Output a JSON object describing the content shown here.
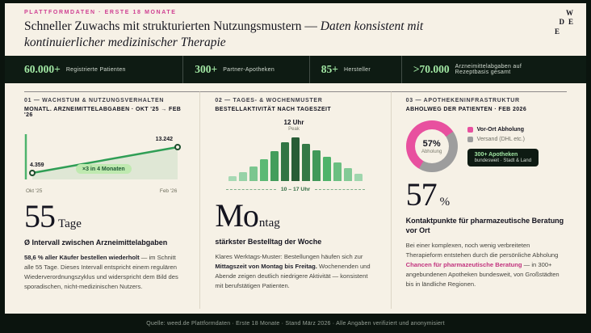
{
  "header": {
    "eyebrow": "PLATTFORMDATEN · ERSTE 18 MONATE",
    "title_regular": "Schneller Zuwachs mit strukturierten Nutzungsmustern —",
    "title_italic": "Daten konsistent mit kontinuierlicher medizinischer Therapie",
    "logo_line1": "W",
    "logo_line2a": "D",
    "logo_line2b": "E",
    "logo_line3": "E"
  },
  "stats": [
    {
      "value": "60.000+",
      "label": "Registrierte Patienten"
    },
    {
      "value": "300+",
      "label": "Partner-Apotheken"
    },
    {
      "value": "85+",
      "label": "Hersteller"
    },
    {
      "value": ">70.000",
      "label": "Arzneimittelabgaben auf Rezeptbasis gesamt"
    }
  ],
  "col1": {
    "header": "01 — WACHSTUM & NUTZUNGSVERHALTEN",
    "subheader": "MONATL. ARZNEIMITTELABGABEN · OKT '25 → FEB '26",
    "chart": {
      "start_value": "4.359",
      "end_value": "13.242",
      "badge": "×3 in 4 Monaten",
      "x_start": "Okt '25",
      "x_end": "Feb '26"
    },
    "big_number": "55",
    "big_unit": "Tage",
    "caption": "Ø Intervall zwischen Arzneimittelabgaben",
    "para_bold": "58,6 % aller Käufer bestellen wiederholt",
    "para_rest": " — im Schnitt alle 55 Tage. Dieses Intervall entspricht einem regulären Wiederverordnungszyklus und widerspricht dem Bild des sporadischen, nicht-medizinischen Nutzers."
  },
  "col2": {
    "header": "02 — TAGES- & WOCHENMUSTER",
    "subheader": "BESTELLAKTIVITÄT NACH TAGESZEIT",
    "peak_label": "12 Uhr",
    "peak_sub": "Peak",
    "range_label": "10 – 17 Uhr",
    "big_number": "Mo",
    "big_unit": "ntag",
    "caption": "stärkster Bestelltag der Woche",
    "para_lead": "Klares Werktags-Muster: Bestellungen häufen sich zur ",
    "para_bold": "Mittagszeit von Montag bis Freitag.",
    "para_rest": " Wochenenden und Abende zeigen deutlich niedrigere Aktivität — konsistent mit berufstätigen Patienten."
  },
  "col3": {
    "header": "03 — APOTHEKENINFRASTRUKTUR",
    "subheader": "ABHOLWEG DER PATIENTEN · FEB 2026",
    "donut_value": "57%",
    "donut_label": "Abholung",
    "legend_pickup": "Vor-Ort Abholung",
    "legend_shipping": "Versand (DHL etc.)",
    "badge_line1": "300+ Apotheken",
    "badge_line2": "bundesweit · Stadt & Land",
    "big_number": "57",
    "big_unit": "%",
    "caption": "Kontaktpunkte für pharmazeutische Beratung vor Ort",
    "para_lead": "Bei einer komplexen, noch wenig verbreiteten Therapieform entstehen durch die persönliche Abholung ",
    "para_accent": "Chancen für pharmazeutische Beratung",
    "para_rest": " — in 300+ angebundenen Apotheken bundesweit, von Großstädten bis in ländliche Regionen."
  },
  "footer": {
    "source": "Quelle: weed.de Plattformdaten · Erste 18 Monate · Stand März 2026 · Alle Angaben verifiziert und anonymisiert"
  },
  "colors": {
    "accent_pink": "#cf3f92",
    "accent_green": "#9fe3a1",
    "dark": "#0e1b13",
    "cream": "#f6f1e6"
  },
  "chart_data": [
    {
      "type": "line",
      "title": "Monatl. Arzneimittelabgaben Okt '25 → Feb '26",
      "x": [
        "Okt '25",
        "Feb '26"
      ],
      "values": [
        4359,
        13242
      ],
      "annotation": "×3 in 4 Monaten"
    },
    {
      "type": "bar",
      "title": "Bestellaktivität nach Tageszeit",
      "unit": "relative Bestellaktivität",
      "values": [
        12,
        20,
        34,
        50,
        68,
        88,
        100,
        86,
        70,
        56,
        42,
        30,
        16
      ],
      "peak": "12 Uhr",
      "active_range": "10 – 17 Uhr"
    },
    {
      "type": "pie",
      "title": "Abholweg der Patienten · Feb 2026",
      "labels": [
        "Vor-Ort Abholung",
        "Versand (DHL etc.)"
      ],
      "values": [
        57,
        43
      ],
      "colors": [
        "#e8509f",
        "#9d9d9d"
      ],
      "center_value": "57%",
      "center_label": "Abholung"
    }
  ]
}
